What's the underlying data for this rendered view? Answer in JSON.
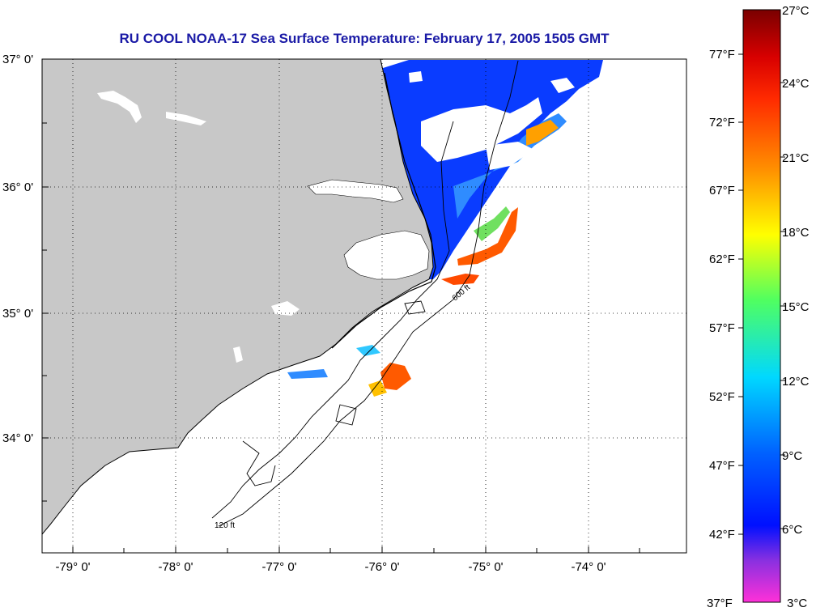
{
  "title": "RU COOL  NOAA-17  Sea Surface Temperature:  February 17, 2005 1505 GMT",
  "map": {
    "lat_labels": [
      "37° 0'",
      "36° 0'",
      "35° 0'",
      "34° 0'"
    ],
    "lon_labels": [
      "-79° 0'",
      "-78° 0'",
      "-77° 0'",
      "-76° 0'",
      "-75° 0'",
      "-74° 0'"
    ],
    "contour_labels": [
      "120 ft",
      "600 ft"
    ],
    "colors": {
      "land": "#c8c8c8",
      "ocean": "#ffffff",
      "cold_water": "#0a3cff",
      "warm_water": "#ff5a00"
    }
  },
  "colorbar": {
    "fahrenheit_labels": [
      "77°F",
      "72°F",
      "67°F",
      "62°F",
      "57°F",
      "52°F",
      "47°F",
      "42°F",
      "37°F"
    ],
    "celsius_labels": [
      "27°C",
      "24°C",
      "21°C",
      "18°C",
      "15°C",
      "12°C",
      "9°C",
      "6°C",
      "3°C"
    ]
  }
}
